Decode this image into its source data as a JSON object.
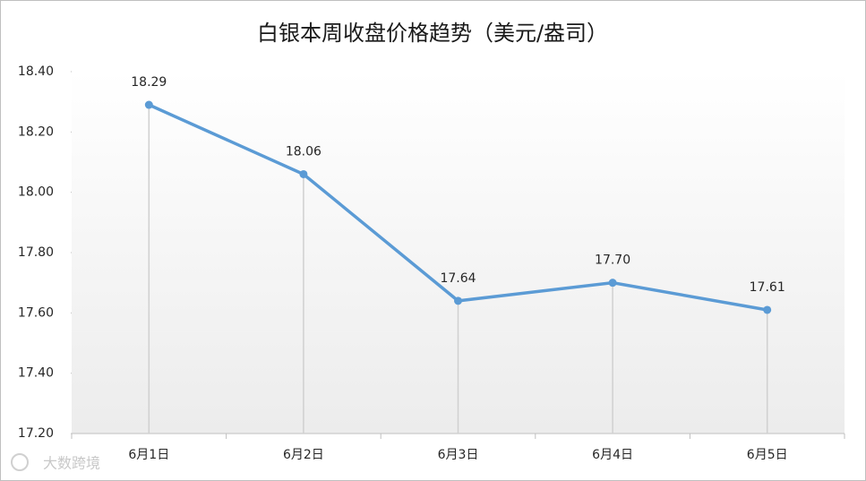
{
  "chart_data": {
    "type": "line",
    "title": "白银本周收盘价格趋势（美元/盎司）",
    "categories": [
      "6月1日",
      "6月2日",
      "6月3日",
      "6月4日",
      "6月5日"
    ],
    "series": [
      {
        "color": "#5b9bd5",
        "values": [
          18.29,
          18.06,
          17.64,
          17.7,
          17.61
        ],
        "value_labels": [
          "18.29",
          "18.06",
          "17.64",
          "17.70",
          "17.61"
        ]
      }
    ],
    "ylim": [
      17.2,
      18.4
    ],
    "yticks": [
      {
        "value": 17.2,
        "label": "17.20"
      },
      {
        "value": 17.4,
        "label": "17.40"
      },
      {
        "value": 17.6,
        "label": "17.60"
      },
      {
        "value": 17.8,
        "label": "17.80"
      },
      {
        "value": 18.0,
        "label": "18.00"
      },
      {
        "value": 18.2,
        "label": "18.20"
      },
      {
        "value": 18.4,
        "label": "18.40"
      }
    ],
    "drop_lines": true,
    "watermark": "大数跨境"
  }
}
